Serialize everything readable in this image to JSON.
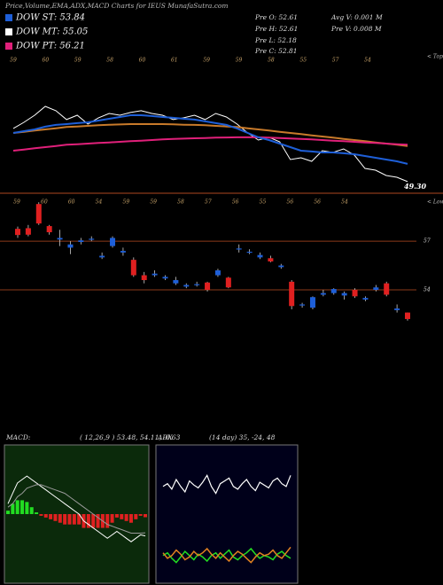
{
  "header": {
    "title": "Price,Volume,EMA,ADX,MACD Charts for IEUS MunafaSutra.com"
  },
  "legend": [
    {
      "text": "DOW ST: 53.84",
      "color": "#1e5fd8"
    },
    {
      "text": "DOW MT: 55.05",
      "color": "#ffffff"
    },
    {
      "text": "DOW PT: 56.21",
      "color": "#e0207a"
    }
  ],
  "stats": {
    "left": [
      "Pre O: 52.61",
      "Pre H: 52.61",
      "Pre L: 52.18",
      "Pre C: 52.81"
    ],
    "right": [
      "Avg V: 0.001 M",
      "Pre V: 0.008 M"
    ]
  },
  "chart_data": [
    {
      "type": "line",
      "ylim": [
        49.3,
        61.3
      ],
      "reference": {
        "value": 49.3,
        "label": "49.30",
        "color": "#8b3a1a"
      },
      "tops_label": "< Tops",
      "tops": [
        59,
        60,
        59,
        58,
        60,
        61,
        59,
        59,
        58,
        55,
        57,
        54
      ],
      "series": [
        {
          "color": "#ffffff",
          "values": [
            54.78,
            55.3,
            55.9,
            56.65,
            56.28,
            55.53,
            55.9,
            55.15,
            55.68,
            56.05,
            55.9,
            56.13,
            56.28,
            56.05,
            55.9,
            55.53,
            55.68,
            55.9,
            55.53,
            56.05,
            55.75,
            55.15,
            54.4,
            53.8,
            54.03,
            53.65,
            52.15,
            52.3,
            52.0,
            52.9,
            52.75,
            53.05,
            52.53,
            51.4,
            51.25,
            50.8,
            50.65,
            50.28
          ]
        },
        {
          "color": "#c87a2a",
          "values": [
            54.4,
            54.5,
            54.6,
            54.7,
            54.8,
            54.9,
            54.95,
            55.0,
            55.05,
            55.1,
            55.12,
            55.15,
            55.15,
            55.15,
            55.15,
            55.13,
            55.1,
            55.08,
            55.05,
            55.0,
            54.95,
            54.9,
            54.8,
            54.7,
            54.6,
            54.5,
            54.4,
            54.3,
            54.2,
            54.1,
            54.0,
            53.9,
            53.8,
            53.7,
            53.6,
            53.5,
            53.4,
            53.3
          ]
        },
        {
          "color": "#e0207a",
          "values": [
            52.9,
            53.0,
            53.1,
            53.2,
            53.3,
            53.4,
            53.45,
            53.5,
            53.55,
            53.6,
            53.65,
            53.7,
            53.75,
            53.8,
            53.85,
            53.9,
            53.92,
            53.95,
            53.97,
            54.0,
            54.02,
            54.03,
            54.03,
            54.03,
            54.0,
            53.97,
            53.93,
            53.9,
            53.85,
            53.8,
            53.75,
            53.7,
            53.65,
            53.6,
            53.55,
            53.5,
            53.45,
            53.4
          ]
        },
        {
          "color": "#1e5fd8",
          "values": [
            54.4,
            54.55,
            54.7,
            54.93,
            55.08,
            55.15,
            55.23,
            55.3,
            55.45,
            55.6,
            55.75,
            55.9,
            55.9,
            55.83,
            55.75,
            55.68,
            55.6,
            55.53,
            55.38,
            55.23,
            55.08,
            54.78,
            54.4,
            54.03,
            53.8,
            53.5,
            53.2,
            52.9,
            52.83,
            52.75,
            52.75,
            52.68,
            52.6,
            52.45,
            52.3,
            52.15,
            52.0,
            51.78
          ]
        }
      ]
    },
    {
      "type": "candlestick",
      "ylim": [
        51.65,
        59.3
      ],
      "yticks": [
        57,
        54
      ],
      "grid_color": "#8b3a1a",
      "up_color": "#1e5fd8",
      "down_color": "#e02020",
      "lows_label": "< Lows",
      "lows": [
        59,
        60,
        60,
        54,
        59,
        59,
        58,
        57,
        56,
        55,
        56,
        56,
        54
      ],
      "open": [
        57.76,
        57.8,
        59.29,
        57.93,
        57.1,
        56.6,
        56.95,
        57.1,
        56.0,
        56.7,
        56.3,
        55.85,
        54.9,
        54.9,
        54.7,
        54.4,
        54.2,
        54.3,
        54.45,
        54.9,
        54.75,
        56.5,
        56.3,
        56.0,
        55.95,
        55.4,
        54.5,
        53.05,
        52.9,
        53.7,
        53.8,
        53.65,
        54.0,
        53.4,
        54.0,
        54.4,
        52.75,
        52.6
      ],
      "high": [
        57.9,
        58.0,
        59.4,
        58.0,
        57.7,
        57.0,
        57.2,
        57.3,
        56.3,
        57.3,
        56.6,
        56.0,
        55.1,
        55.2,
        54.9,
        54.8,
        54.4,
        54.5,
        54.5,
        55.3,
        54.8,
        56.8,
        56.5,
        56.3,
        56.1,
        55.6,
        54.6,
        53.2,
        53.6,
        54.0,
        54.1,
        53.9,
        54.1,
        53.6,
        54.3,
        54.5,
        53.1,
        52.6
      ],
      "low": [
        57.2,
        57.3,
        58.0,
        57.4,
        56.7,
        56.2,
        56.8,
        57.0,
        55.9,
        56.6,
        56.1,
        54.8,
        54.4,
        54.8,
        54.6,
        54.3,
        54.1,
        54.2,
        53.9,
        54.8,
        54.1,
        56.3,
        56.2,
        55.9,
        55.7,
        55.3,
        52.8,
        52.9,
        52.8,
        53.6,
        53.7,
        53.4,
        53.5,
        53.3,
        53.9,
        53.6,
        52.6,
        52.1
      ],
      "close": [
        57.38,
        57.4,
        58.09,
        57.55,
        57.2,
        56.8,
        57.05,
        57.15,
        56.1,
        57.2,
        56.4,
        54.9,
        54.6,
        55.0,
        54.8,
        54.6,
        54.3,
        54.35,
        54.0,
        55.2,
        54.15,
        56.55,
        56.35,
        56.15,
        55.75,
        55.5,
        53.0,
        53.1,
        53.55,
        53.8,
        54.05,
        53.8,
        53.6,
        53.5,
        54.15,
        53.7,
        52.85,
        52.2
      ]
    },
    {
      "type": "macd",
      "title": "MACD:",
      "subtitle": "( 12,26,9 ) 53.48, 54.11, -0.63",
      "ylim": [
        -2,
        2
      ],
      "background": "#0b2a0b",
      "up_color": "#22dd22",
      "down_color": "#e02020",
      "series": [
        {
          "color": "#ffffff",
          "values": [
            0.3,
            0.6,
            0.9,
            1.0,
            1.1,
            1.0,
            0.9,
            0.8,
            0.7,
            0.6,
            0.5,
            0.4,
            0.3,
            0.2,
            0.1,
            0.0,
            -0.2,
            -0.3,
            -0.4,
            -0.5,
            -0.6,
            -0.7,
            -0.6,
            -0.5,
            -0.6,
            -0.7,
            -0.8,
            -0.7,
            -0.6,
            -0.63
          ]
        },
        {
          "color": "#9a9a9a",
          "values": [
            0.2,
            0.3,
            0.5,
            0.6,
            0.75,
            0.8,
            0.85,
            0.85,
            0.8,
            0.75,
            0.7,
            0.65,
            0.6,
            0.5,
            0.4,
            0.3,
            0.2,
            0.1,
            0.0,
            -0.1,
            -0.2,
            -0.3,
            -0.35,
            -0.4,
            -0.45,
            -0.5,
            -0.55,
            -0.55,
            -0.55,
            -0.54
          ]
        }
      ],
      "histogram": [
        0.1,
        0.3,
        0.4,
        0.4,
        0.35,
        0.2,
        0.05,
        -0.05,
        -0.1,
        -0.15,
        -0.2,
        -0.25,
        -0.3,
        -0.3,
        -0.3,
        -0.3,
        -0.4,
        -0.4,
        -0.4,
        -0.4,
        -0.4,
        -0.4,
        -0.25,
        -0.1,
        -0.15,
        -0.2,
        -0.25,
        -0.15,
        -0.05,
        -0.09
      ]
    },
    {
      "type": "adx",
      "title": "ADX",
      "subtitle": "(14 day) 35, -24, 48",
      "ylim": [
        0,
        100
      ],
      "background": "#00001a",
      "series": [
        {
          "color": "#ffffff",
          "values": [
            70,
            72,
            68,
            75,
            70,
            66,
            74,
            71,
            69,
            73,
            78,
            70,
            65,
            72,
            74,
            76,
            70,
            68,
            72,
            75,
            70,
            67,
            73,
            71,
            69,
            74,
            76,
            72,
            70,
            78
          ]
        },
        {
          "color": "#22dd22",
          "values": [
            20,
            22,
            18,
            15,
            19,
            23,
            20,
            17,
            21,
            19,
            16,
            20,
            22,
            18,
            21,
            24,
            19,
            17,
            20,
            22,
            25,
            21,
            18,
            20,
            19,
            17,
            21,
            23,
            20,
            18
          ]
        },
        {
          "color": "#e08020",
          "values": [
            22,
            18,
            20,
            24,
            21,
            17,
            19,
            23,
            20,
            22,
            25,
            21,
            18,
            22,
            19,
            16,
            20,
            23,
            21,
            18,
            15,
            19,
            22,
            20,
            21,
            24,
            20,
            18,
            22,
            26
          ]
        }
      ]
    }
  ]
}
